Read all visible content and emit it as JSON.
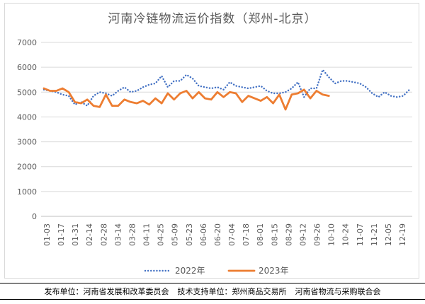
{
  "chart_data": {
    "type": "line",
    "title": "河南冷链物流运价指数（郑州-北京）",
    "ylim": [
      0,
      7000
    ],
    "yticks": [
      0,
      1000,
      2000,
      3000,
      4000,
      5000,
      6000,
      7000
    ],
    "grid": true,
    "legend_position": "bottom",
    "x_tick_labels": [
      "01-03",
      "01-17",
      "01-31",
      "02-14",
      "02-28",
      "03-14",
      "03-28",
      "04-11",
      "04-25",
      "05-09",
      "05-23",
      "06-06",
      "06-20",
      "07-04",
      "07-18",
      "08-01",
      "08-15",
      "08-29",
      "09-12",
      "09-26",
      "10-10",
      "10-24",
      "11-07",
      "11-21",
      "12-05",
      "12-19"
    ],
    "series": [
      {
        "name": "2022年",
        "color": "#4472c4",
        "style": "dotted",
        "values": [
          5100,
          5050,
          5000,
          4900,
          4850,
          4500,
          4600,
          4450,
          4850,
          5000,
          4950,
          4850,
          5050,
          5200,
          5000,
          5050,
          5200,
          5300,
          5350,
          5650,
          5200,
          5450,
          5450,
          5700,
          5550,
          5250,
          5200,
          5150,
          5200,
          5100,
          5400,
          5250,
          5200,
          5150,
          5200,
          5250,
          5050,
          4950,
          4950,
          5000,
          5150,
          5400,
          4800,
          5150,
          5150,
          5900,
          5600,
          5350,
          5450,
          5450,
          5400,
          5350,
          5200,
          4950,
          4800,
          5000,
          4850,
          4800,
          4850,
          5100
        ]
      },
      {
        "name": "2023年",
        "color": "#ed7d31",
        "style": "solid",
        "values": [
          5150,
          5050,
          5050,
          5150,
          5000,
          4600,
          4550,
          4700,
          4450,
          4400,
          4900,
          4450,
          4450,
          4700,
          4600,
          4550,
          4650,
          4500,
          4750,
          4550,
          4950,
          4700,
          4950,
          5050,
          4750,
          5000,
          4750,
          4700,
          5000,
          4800,
          5000,
          4950,
          4600,
          4850,
          4750,
          4650,
          4800,
          4550,
          4900,
          4300,
          4900,
          4950,
          5100,
          4750,
          5050,
          4900,
          4850
        ]
      }
    ]
  },
  "footer": {
    "publisher": "发布单位：河南省发展和改革委员会",
    "tech_support": "技术支持单位：郑州商品交易所",
    "partner": "河南省物流与采购联合会"
  }
}
